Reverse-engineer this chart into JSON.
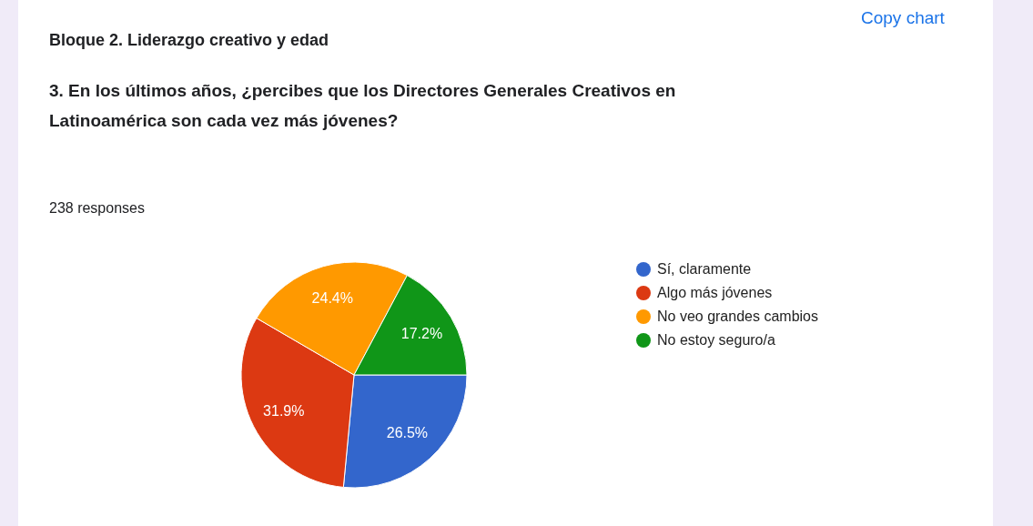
{
  "chart_data": {
    "type": "pie",
    "title": "Bloque 2. Liderazgo creativo y edad",
    "subtitle": "3. En los últimos años, ¿percibes que los Directores Generales Creativos en Latinoamérica son cada vez más jóvenes?",
    "categories": [
      "Sí, claramente",
      "Algo más jóvenes",
      "No veo grandes cambios",
      "No estoy seguro/a"
    ],
    "values": [
      26.5,
      31.9,
      24.4,
      17.2
    ],
    "colors": [
      "#3366cc",
      "#dc3912",
      "#ff9900",
      "#109618"
    ],
    "value_labels": [
      "26.5%",
      "31.9%",
      "24.4%",
      "17.2%"
    ],
    "legend": "right",
    "annotations": [
      "238 responses",
      "Copy chart"
    ]
  }
}
